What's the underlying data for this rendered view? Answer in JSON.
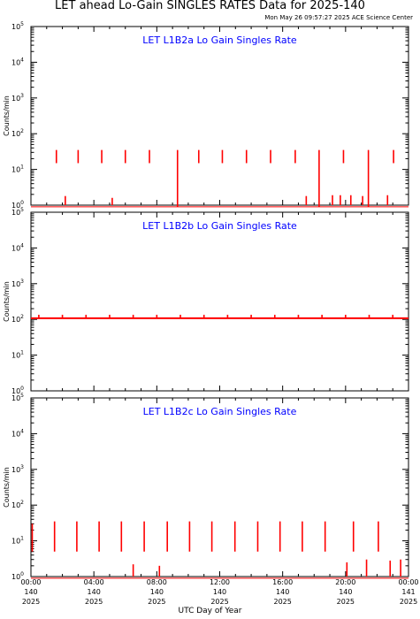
{
  "title": "LET ahead Lo-Gain SINGLES RATES Data for 2025-140",
  "timestamp": "Mon May 26 09:57:27 2025 ACE Science Center",
  "x_axis_title": "UTC Day of Year",
  "colors": {
    "data": "#ff0000",
    "panel_title": "#0000ff",
    "axis": "#000000"
  },
  "chart_data": [
    {
      "type": "line",
      "title": "LET L1B2a Lo Gain Singles Rate",
      "ylabel": "Counts/min",
      "yscale": "log",
      "ylim": [
        1,
        100000
      ],
      "y_ticks": [
        1,
        10,
        100,
        1000,
        10000,
        100000
      ],
      "y_tick_labels": [
        "10^0",
        "10^1",
        "10^2",
        "10^3",
        "10^4",
        "10^5"
      ],
      "xlim": [
        "140 00:00",
        "141 00:00"
      ],
      "baseline": 0.9,
      "spikes": [
        {
          "time": "01:37",
          "low": 15,
          "high": 35
        },
        {
          "time": "02:11",
          "low": 1,
          "high": 1.8
        },
        {
          "time": "03:00",
          "low": 15,
          "high": 35
        },
        {
          "time": "04:30",
          "low": 15,
          "high": 35
        },
        {
          "time": "05:10",
          "low": 1,
          "high": 1.6
        },
        {
          "time": "06:00",
          "low": 15,
          "high": 35
        },
        {
          "time": "07:32",
          "low": 15,
          "high": 35
        },
        {
          "time": "09:19",
          "low": 0.9,
          "high": 35
        },
        {
          "time": "10:40",
          "low": 15,
          "high": 35
        },
        {
          "time": "12:10",
          "low": 15,
          "high": 35
        },
        {
          "time": "13:42",
          "low": 15,
          "high": 35
        },
        {
          "time": "15:14",
          "low": 15,
          "high": 35
        },
        {
          "time": "16:48",
          "low": 15,
          "high": 35
        },
        {
          "time": "17:30",
          "low": 1,
          "high": 1.8
        },
        {
          "time": "18:19",
          "low": 0.9,
          "high": 35
        },
        {
          "time": "19:10",
          "low": 1,
          "high": 1.9
        },
        {
          "time": "19:40",
          "low": 1,
          "high": 1.9
        },
        {
          "time": "19:52",
          "low": 15,
          "high": 35
        },
        {
          "time": "20:20",
          "low": 1,
          "high": 1.9
        },
        {
          "time": "21:05",
          "low": 1,
          "high": 1.8
        },
        {
          "time": "21:27",
          "low": 0.9,
          "high": 35
        },
        {
          "time": "22:40",
          "low": 1,
          "high": 1.9
        },
        {
          "time": "23:03",
          "low": 15,
          "high": 35
        }
      ]
    },
    {
      "type": "line",
      "title": "LET L1B2b Lo Gain Singles Rate",
      "ylabel": "Counts/min",
      "yscale": "log",
      "ylim": [
        1,
        100000
      ],
      "y_ticks": [
        1,
        10,
        100,
        1000,
        10000,
        100000
      ],
      "y_tick_labels": [
        "10^0",
        "10^1",
        "10^2",
        "10^3",
        "10^4",
        "10^5"
      ],
      "xlim": [
        "140 00:00",
        "141 00:00"
      ],
      "baseline": 108,
      "spikes": [
        {
          "time": "00:30",
          "low": 108,
          "high": 135
        },
        {
          "time": "02:00",
          "low": 108,
          "high": 135
        },
        {
          "time": "03:30",
          "low": 108,
          "high": 135
        },
        {
          "time": "05:00",
          "low": 108,
          "high": 135
        },
        {
          "time": "06:30",
          "low": 108,
          "high": 135
        },
        {
          "time": "08:00",
          "low": 108,
          "high": 135
        },
        {
          "time": "09:30",
          "low": 108,
          "high": 135
        },
        {
          "time": "11:00",
          "low": 108,
          "high": 135
        },
        {
          "time": "12:30",
          "low": 108,
          "high": 135
        },
        {
          "time": "14:00",
          "low": 108,
          "high": 135
        },
        {
          "time": "15:30",
          "low": 108,
          "high": 135
        },
        {
          "time": "17:00",
          "low": 108,
          "high": 135
        },
        {
          "time": "18:30",
          "low": 108,
          "high": 135
        },
        {
          "time": "20:00",
          "low": 108,
          "high": 135
        },
        {
          "time": "21:30",
          "low": 108,
          "high": 135
        },
        {
          "time": "23:00",
          "low": 108,
          "high": 135
        }
      ]
    },
    {
      "type": "line",
      "title": "LET L1B2c Lo Gain Singles Rate",
      "ylabel": "Counts/min",
      "yscale": "log",
      "ylim": [
        1,
        100000
      ],
      "y_ticks": [
        1,
        10,
        100,
        1000,
        10000,
        100000
      ],
      "y_tick_labels": [
        "10^0",
        "10^1",
        "10^2",
        "10^3",
        "10^4",
        "10^5"
      ],
      "xlim": [
        "140 00:00",
        "141 00:00"
      ],
      "x_ticks": [
        "140 00:00",
        "140 04:00",
        "140 08:00",
        "140 12:00",
        "140 16:00",
        "140 20:00",
        "141 00:00"
      ],
      "x_tick_labels": [
        [
          "00:00",
          "140",
          "2025"
        ],
        [
          "04:00",
          "140",
          "2025"
        ],
        [
          "08:00",
          "140",
          "2025"
        ],
        [
          "12:00",
          "140",
          "2025"
        ],
        [
          "16:00",
          "140",
          "2025"
        ],
        [
          "20:00",
          "140",
          "2025"
        ],
        [
          "00:00",
          "141",
          "2025"
        ]
      ],
      "baseline": 0.9,
      "spikes": [
        {
          "time": "00:05",
          "low": 5,
          "high": 30
        },
        {
          "time": "01:30",
          "low": 5,
          "high": 35
        },
        {
          "time": "02:55",
          "low": 5,
          "high": 35
        },
        {
          "time": "04:20",
          "low": 5,
          "high": 35
        },
        {
          "time": "05:45",
          "low": 5,
          "high": 35
        },
        {
          "time": "06:30",
          "low": 1,
          "high": 2.2
        },
        {
          "time": "07:12",
          "low": 5,
          "high": 35
        },
        {
          "time": "08:10",
          "low": 1,
          "high": 2
        },
        {
          "time": "08:40",
          "low": 5,
          "high": 35
        },
        {
          "time": "10:05",
          "low": 5,
          "high": 35
        },
        {
          "time": "11:30",
          "low": 5,
          "high": 35
        },
        {
          "time": "12:58",
          "low": 5,
          "high": 35
        },
        {
          "time": "14:25",
          "low": 5,
          "high": 35
        },
        {
          "time": "15:50",
          "low": 5,
          "high": 35
        },
        {
          "time": "17:15",
          "low": 5,
          "high": 35
        },
        {
          "time": "18:42",
          "low": 5,
          "high": 35
        },
        {
          "time": "20:05",
          "low": 1,
          "high": 2.5
        },
        {
          "time": "20:30",
          "low": 5,
          "high": 35
        },
        {
          "time": "21:20",
          "low": 1,
          "high": 3
        },
        {
          "time": "22:05",
          "low": 5,
          "high": 35
        },
        {
          "time": "22:50",
          "low": 1,
          "high": 2.8
        },
        {
          "time": "23:30",
          "low": 1,
          "high": 3
        }
      ]
    }
  ]
}
